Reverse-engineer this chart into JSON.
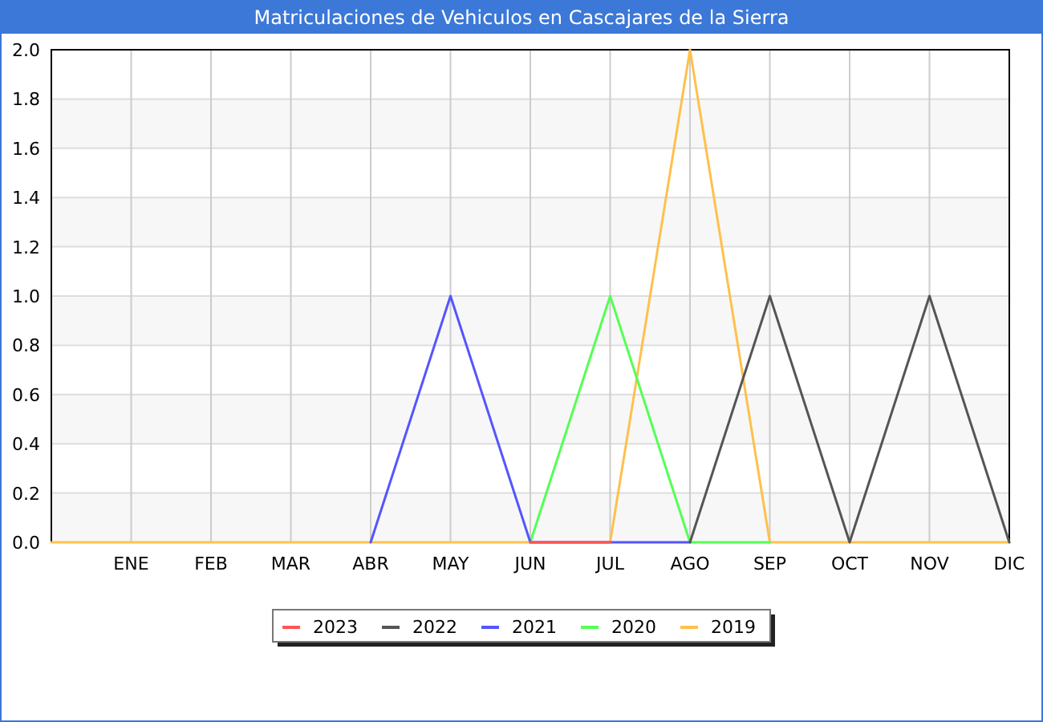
{
  "chart_data": {
    "type": "line",
    "title": "Matriculaciones de Vehiculos en Cascajares de la Sierra",
    "categories": [
      null,
      "ENE",
      "FEB",
      "MAR",
      "ABR",
      "MAY",
      "JUN",
      "JUL",
      "AGO",
      "SEP",
      "OCT",
      "NOV",
      "DIC"
    ],
    "series": [
      {
        "name": "2023",
        "color": "#ff5555",
        "values": [
          null,
          null,
          null,
          null,
          null,
          null,
          0,
          0,
          null,
          null,
          null,
          null,
          null
        ]
      },
      {
        "name": "2022",
        "color": "#555555",
        "values": [
          null,
          null,
          null,
          null,
          null,
          null,
          null,
          null,
          0,
          1,
          0,
          1,
          0
        ]
      },
      {
        "name": "2021",
        "color": "#5555ff",
        "values": [
          null,
          null,
          null,
          null,
          0,
          1,
          0,
          0,
          0,
          null,
          null,
          null,
          null
        ]
      },
      {
        "name": "2020",
        "color": "#55ff55",
        "values": [
          null,
          null,
          null,
          null,
          null,
          null,
          0,
          1,
          0,
          0,
          null,
          null,
          null
        ]
      },
      {
        "name": "2019",
        "color": "#ffc04d",
        "values": [
          0,
          0,
          0,
          0,
          0,
          0,
          0,
          0,
          2,
          0,
          0,
          0,
          0
        ]
      }
    ],
    "ylim": [
      0,
      2
    ],
    "yticks": [
      {
        "value": 0,
        "label": "0.0"
      },
      0.2,
      0.4,
      0.6,
      0.8,
      {
        "value": 1,
        "label": "1.0"
      },
      1.2,
      1.4,
      1.6,
      1.8,
      {
        "value": 2,
        "label": "2.0"
      }
    ],
    "grid": true,
    "legend": "bottom"
  }
}
